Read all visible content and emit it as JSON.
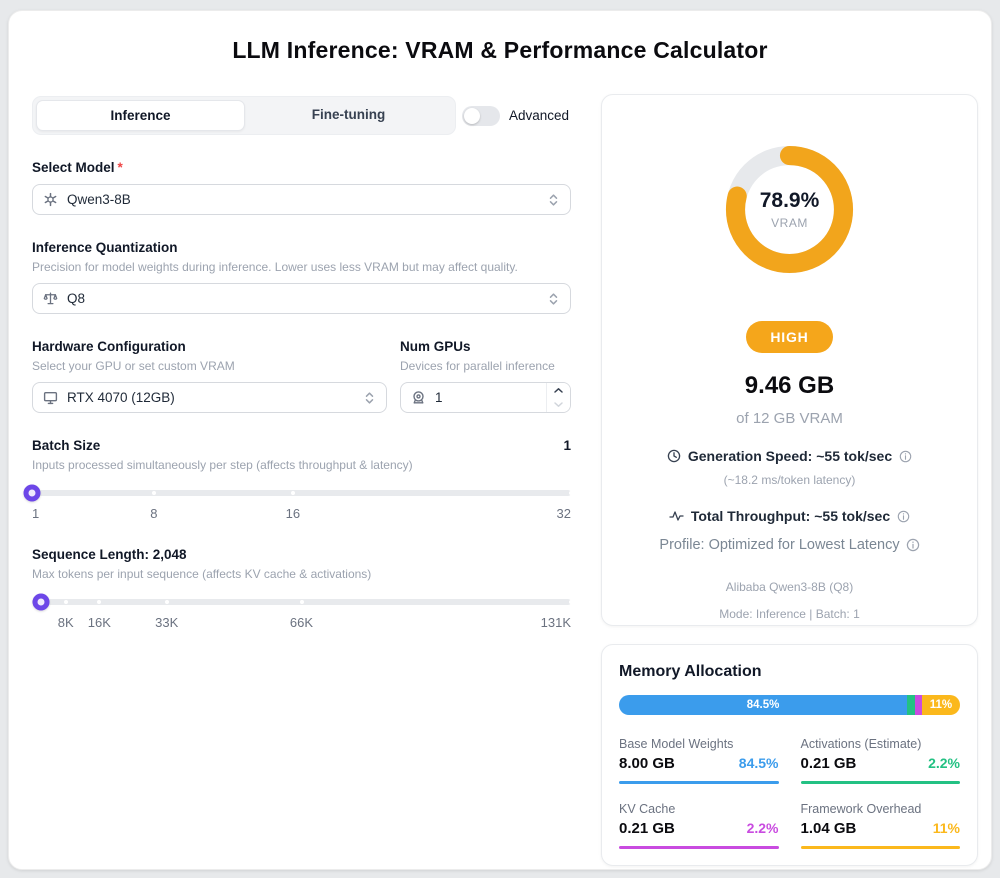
{
  "title": "LLM Inference: VRAM & Performance Calculator",
  "tabs": {
    "inference": "Inference",
    "finetuning": "Fine-tuning"
  },
  "advanced_label": "Advanced",
  "form": {
    "model": {
      "label": "Select Model",
      "required_mark": "*",
      "value": "Qwen3-8B"
    },
    "quant": {
      "label": "Inference Quantization",
      "help": "Precision for model weights during inference. Lower uses less VRAM but may affect quality.",
      "value": "Q8"
    },
    "hardware": {
      "label": "Hardware Configuration",
      "help": "Select your GPU or set custom VRAM",
      "value": "RTX 4070 (12GB)"
    },
    "num_gpus": {
      "label": "Num GPUs",
      "help": "Devices for parallel inference",
      "value": "1"
    },
    "batch": {
      "label": "Batch Size",
      "value": "1",
      "help": "Inputs processed simultaneously per step (affects throughput & latency)",
      "thumb_pos": 0,
      "ticks": [
        {
          "label": "1",
          "pos": 0
        },
        {
          "label": "8",
          "pos": 22.6
        },
        {
          "label": "16",
          "pos": 48.4
        },
        {
          "label": "32",
          "pos": 100
        }
      ]
    },
    "seq": {
      "label": "Sequence Length: 2,048",
      "help": "Max tokens per input sequence (affects KV cache & activations)",
      "thumb_pos": 1.6,
      "ticks": [
        {
          "label": "8K",
          "pos": 6.25
        },
        {
          "label": "16K",
          "pos": 12.5
        },
        {
          "label": "33K",
          "pos": 25
        },
        {
          "label": "66K",
          "pos": 50
        },
        {
          "label": "131K",
          "pos": 100
        }
      ]
    }
  },
  "results": {
    "gauge": {
      "percent": "78.9%",
      "caption": "VRAM",
      "value": 78.9,
      "color": "#f2a51c",
      "track": "#e7e9ec"
    },
    "badge": "HIGH",
    "usage": "9.46 GB",
    "of_total": "of 12 GB VRAM",
    "gen_speed": "Generation Speed: ~55 tok/sec",
    "latency": "(~18.2 ms/token latency)",
    "throughput": "Total Throughput: ~55 tok/sec",
    "profile": "Profile: Optimized for Lowest Latency",
    "model_line": "Alibaba Qwen3-8B (Q8)",
    "mode_line": "Mode: Inference | Batch: 1"
  },
  "memory": {
    "title": "Memory Allocation",
    "segments": [
      {
        "name": "Base Model Weights",
        "gb": "8.00 GB",
        "pct": "84.5%",
        "value": 84.5,
        "color": "#3b9cec",
        "bar_label": "84.5%"
      },
      {
        "name": "Activations (Estimate)",
        "gb": "0.21 GB",
        "pct": "2.2%",
        "value": 2.2,
        "color": "#23c183",
        "bar_label": ""
      },
      {
        "name": "KV Cache",
        "gb": "0.21 GB",
        "pct": "2.2%",
        "value": 2.2,
        "color": "#c94be0",
        "bar_label": ""
      },
      {
        "name": "Framework Overhead",
        "gb": "1.04 GB",
        "pct": "11%",
        "value": 11,
        "color": "#fbb81c",
        "bar_label": "11%"
      }
    ]
  }
}
